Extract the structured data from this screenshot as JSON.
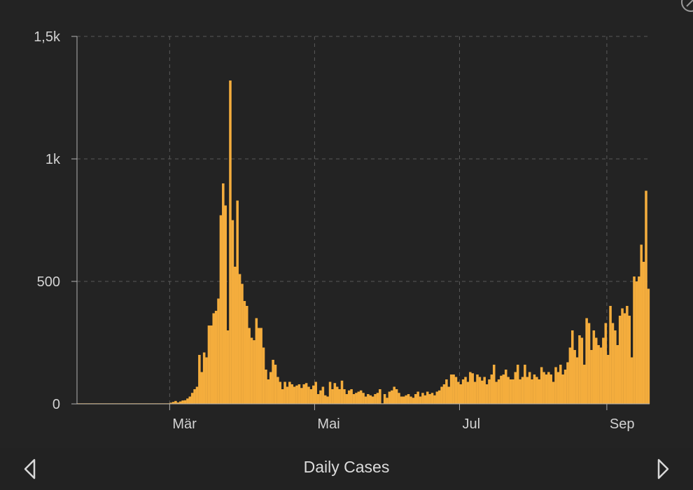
{
  "chart_data": {
    "type": "bar",
    "title": "Daily Cases",
    "ylim": [
      0,
      1500
    ],
    "y_ticks": [
      {
        "value": 0,
        "label": "0"
      },
      {
        "value": 500,
        "label": "500"
      },
      {
        "value": 1000,
        "label": "1k"
      },
      {
        "value": 1500,
        "label": "1,5k"
      }
    ],
    "x_ticks": [
      {
        "index": 39,
        "label": "Mär"
      },
      {
        "index": 100,
        "label": "Mai"
      },
      {
        "index": 161,
        "label": "Jul"
      },
      {
        "index": 223,
        "label": "Sep"
      }
    ],
    "grid": true,
    "bar_color": "#f4ad3d",
    "series": [
      {
        "values": [
          0,
          0,
          0,
          0,
          0,
          0,
          0,
          0,
          0,
          0,
          0,
          0,
          0,
          0,
          0,
          0,
          0,
          0,
          0,
          0,
          0,
          0,
          0,
          0,
          0,
          0,
          0,
          0,
          0,
          0,
          0,
          0,
          0,
          0,
          0,
          0,
          0,
          0,
          0,
          5,
          8,
          12,
          6,
          10,
          14,
          15,
          22,
          30,
          45,
          60,
          70,
          200,
          130,
          210,
          190,
          320,
          320,
          370,
          380,
          430,
          770,
          900,
          810,
          300,
          1320,
          750,
          560,
          830,
          530,
          490,
          420,
          400,
          310,
          270,
          260,
          350,
          310,
          310,
          230,
          140,
          100,
          130,
          180,
          160,
          110,
          90,
          60,
          90,
          70,
          90,
          80,
          70,
          75,
          80,
          65,
          80,
          85,
          70,
          60,
          75,
          90,
          40,
          55,
          70,
          35,
          30,
          90,
          60,
          85,
          70,
          60,
          95,
          60,
          40,
          55,
          60,
          40,
          45,
          50,
          55,
          45,
          30,
          40,
          35,
          30,
          40,
          45,
          60,
          0,
          40,
          25,
          50,
          55,
          70,
          60,
          45,
          30,
          30,
          35,
          40,
          30,
          25,
          40,
          50,
          30,
          45,
          35,
          50,
          40,
          45,
          35,
          50,
          55,
          70,
          80,
          100,
          70,
          120,
          120,
          110,
          90,
          80,
          100,
          110,
          90,
          130,
          125,
          90,
          120,
          110,
          95,
          110,
          80,
          100,
          120,
          160,
          90,
          100,
          115,
          120,
          140,
          110,
          100,
          100,
          130,
          160,
          100,
          110,
          160,
          110,
          130,
          100,
          120,
          110,
          100,
          150,
          130,
          120,
          130,
          120,
          90,
          150,
          130,
          160,
          120,
          140,
          170,
          230,
          300,
          220,
          190,
          280,
          270,
          160,
          350,
          330,
          220,
          300,
          270,
          240,
          230,
          270,
          330,
          200,
          400,
          330,
          300,
          240,
          360,
          390,
          370,
          400,
          360,
          190,
          520,
          500,
          520,
          650,
          580,
          870,
          470
        ]
      }
    ]
  },
  "nav": {
    "title": "Daily Cases",
    "prev_icon": "chevron-left-icon",
    "next_icon": "chevron-right-icon"
  },
  "colors": {
    "background": "#232323",
    "grid": "#5a5a5a",
    "axis": "#b0b0b0",
    "bar": "#f4ad3d"
  }
}
